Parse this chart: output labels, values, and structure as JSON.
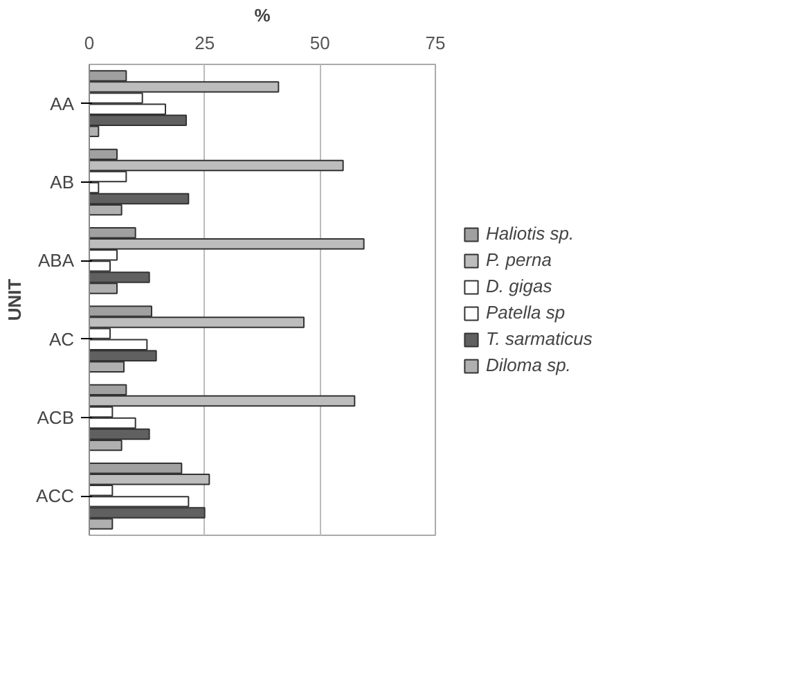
{
  "chart_data": {
    "type": "bar",
    "orientation": "horizontal",
    "xlabel": "%",
    "ylabel": "UNIT",
    "categories": [
      "AA",
      "AB",
      "ABA",
      "AC",
      "ACB",
      "ACC"
    ],
    "series": [
      {
        "name": "Haliotis sp.",
        "color": "#a0a0a0",
        "values": [
          8,
          6,
          10,
          13.5,
          8,
          20
        ]
      },
      {
        "name": "P. perna",
        "color": "#bdbdbd",
        "values": [
          41,
          55,
          59.5,
          46.5,
          57.5,
          26
        ]
      },
      {
        "name": "D. gigas",
        "color": "#ffffff",
        "values": [
          11.5,
          8,
          6,
          4.5,
          5,
          5
        ]
      },
      {
        "name": "Patella sp",
        "color": "#ffffff",
        "values": [
          16.5,
          2,
          4.5,
          12.5,
          10,
          21.5
        ]
      },
      {
        "name": "T. sarmaticus",
        "color": "#606060",
        "values": [
          21,
          21.5,
          13,
          14.5,
          13,
          25
        ]
      },
      {
        "name": "Diloma sp.",
        "color": "#b0b0b0",
        "values": [
          2,
          7,
          6,
          7.5,
          7,
          5
        ]
      }
    ],
    "xlim": [
      0,
      75
    ],
    "xticks": [
      0,
      25,
      50,
      75
    ],
    "grid": "x",
    "legend": "right"
  }
}
